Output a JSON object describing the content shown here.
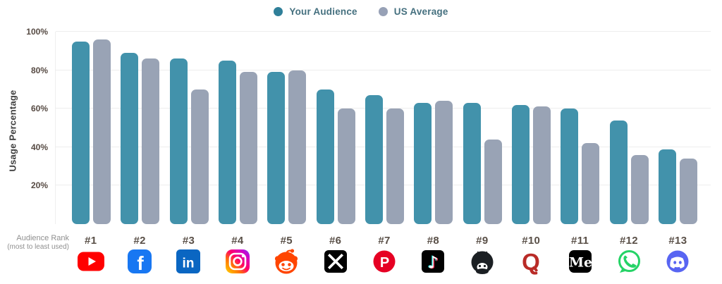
{
  "legend": {
    "items": [
      {
        "label": "Your Audience",
        "color": "#2f7f99"
      },
      {
        "label": "US Average",
        "color": "#97a1b6"
      }
    ]
  },
  "y_axis": {
    "title": "Usage Percentage",
    "tick_labels": [
      "100%",
      "80%",
      "60%",
      "40%",
      "20%"
    ]
  },
  "x_axis": {
    "label_line1": "Audience Rank",
    "label_line2": "(most to least used)"
  },
  "chart_data": {
    "type": "bar",
    "title": "",
    "ylabel": "Usage Percentage",
    "ylim": [
      0,
      100
    ],
    "ytick_step": 20,
    "grid": true,
    "legend_position": "top-center",
    "categories": [
      "#1",
      "#2",
      "#3",
      "#4",
      "#5",
      "#6",
      "#7",
      "#8",
      "#9",
      "#10",
      "#11",
      "#12",
      "#13"
    ],
    "platforms": [
      {
        "name": "YouTube",
        "icon": "youtube-icon"
      },
      {
        "name": "Facebook",
        "icon": "facebook-icon"
      },
      {
        "name": "LinkedIn",
        "icon": "linkedin-icon"
      },
      {
        "name": "Instagram",
        "icon": "instagram-icon"
      },
      {
        "name": "Reddit",
        "icon": "reddit-icon"
      },
      {
        "name": "X (Twitter)",
        "icon": "x-icon"
      },
      {
        "name": "Pinterest",
        "icon": "pinterest-icon"
      },
      {
        "name": "TikTok",
        "icon": "tiktok-icon"
      },
      {
        "name": "GitHub",
        "icon": "github-icon"
      },
      {
        "name": "Quora",
        "icon": "quora-icon"
      },
      {
        "name": "Medium",
        "icon": "medium-icon"
      },
      {
        "name": "WhatsApp",
        "icon": "whatsapp-icon"
      },
      {
        "name": "Discord",
        "icon": "discord-icon"
      }
    ],
    "series": [
      {
        "name": "Your Audience",
        "color": "#4292ab",
        "values": [
          95,
          89,
          86,
          85,
          79,
          70,
          67,
          63,
          63,
          62,
          60,
          54,
          39
        ]
      },
      {
        "name": "US Average",
        "color": "#99a3b5",
        "values": [
          96,
          86,
          70,
          79,
          80,
          60,
          60,
          64,
          44,
          61,
          42,
          36,
          34
        ]
      }
    ]
  }
}
